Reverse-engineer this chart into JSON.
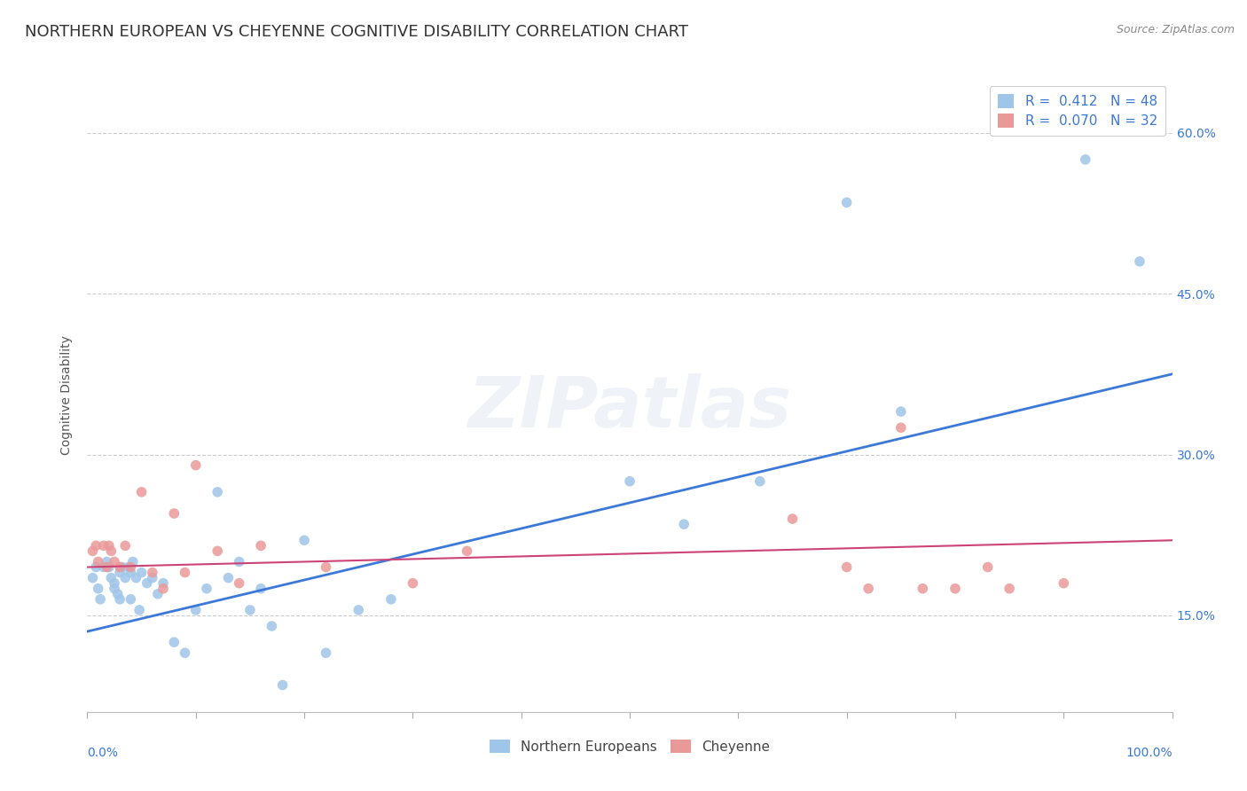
{
  "title": "NORTHERN EUROPEAN VS CHEYENNE COGNITIVE DISABILITY CORRELATION CHART",
  "source": "Source: ZipAtlas.com",
  "ylabel": "Cognitive Disability",
  "ytick_labels": [
    "15.0%",
    "30.0%",
    "45.0%",
    "60.0%"
  ],
  "ytick_values": [
    0.15,
    0.3,
    0.45,
    0.6
  ],
  "xlim": [
    0.0,
    1.0
  ],
  "ylim": [
    0.06,
    0.65
  ],
  "watermark": "ZIPatlas",
  "legend1_r": "R =  0.412",
  "legend1_n": "N = 48",
  "legend2_r": "R =  0.070",
  "legend2_n": "N = 32",
  "bottom_legend1": "Northern Europeans",
  "bottom_legend2": "Cheyenne",
  "blue_color": "#9fc5e8",
  "pink_color": "#ea9999",
  "blue_line_color": "#3c78d8",
  "pink_line_color": "#cc4477",
  "text_color": "#3c78d8",
  "background_color": "#ffffff",
  "grid_color": "#cccccc",
  "blue_scatter_x": [
    0.005,
    0.008,
    0.01,
    0.012,
    0.015,
    0.018,
    0.02,
    0.022,
    0.025,
    0.025,
    0.028,
    0.03,
    0.03,
    0.032,
    0.035,
    0.038,
    0.04,
    0.04,
    0.042,
    0.045,
    0.048,
    0.05,
    0.055,
    0.06,
    0.065,
    0.07,
    0.08,
    0.09,
    0.1,
    0.11,
    0.12,
    0.13,
    0.14,
    0.15,
    0.16,
    0.17,
    0.18,
    0.2,
    0.22,
    0.25,
    0.28,
    0.5,
    0.55,
    0.62,
    0.7,
    0.75,
    0.92,
    0.97
  ],
  "blue_scatter_y": [
    0.185,
    0.195,
    0.175,
    0.165,
    0.195,
    0.2,
    0.195,
    0.185,
    0.18,
    0.175,
    0.17,
    0.165,
    0.19,
    0.195,
    0.185,
    0.195,
    0.19,
    0.165,
    0.2,
    0.185,
    0.155,
    0.19,
    0.18,
    0.185,
    0.17,
    0.18,
    0.125,
    0.115,
    0.155,
    0.175,
    0.265,
    0.185,
    0.2,
    0.155,
    0.175,
    0.14,
    0.085,
    0.22,
    0.115,
    0.155,
    0.165,
    0.275,
    0.235,
    0.275,
    0.535,
    0.34,
    0.575,
    0.48
  ],
  "pink_scatter_x": [
    0.005,
    0.008,
    0.01,
    0.015,
    0.018,
    0.02,
    0.022,
    0.025,
    0.03,
    0.035,
    0.04,
    0.05,
    0.06,
    0.07,
    0.08,
    0.09,
    0.1,
    0.12,
    0.14,
    0.16,
    0.22,
    0.3,
    0.35,
    0.65,
    0.7,
    0.72,
    0.75,
    0.77,
    0.8,
    0.83,
    0.85,
    0.9
  ],
  "pink_scatter_y": [
    0.21,
    0.215,
    0.2,
    0.215,
    0.195,
    0.215,
    0.21,
    0.2,
    0.195,
    0.215,
    0.195,
    0.265,
    0.19,
    0.175,
    0.245,
    0.19,
    0.29,
    0.21,
    0.18,
    0.215,
    0.195,
    0.18,
    0.21,
    0.24,
    0.195,
    0.175,
    0.325,
    0.175,
    0.175,
    0.195,
    0.175,
    0.18
  ],
  "blue_line_x0": 0.0,
  "blue_line_x1": 1.0,
  "blue_line_y0": 0.135,
  "blue_line_y1": 0.375,
  "pink_line_x0": 0.0,
  "pink_line_x1": 1.0,
  "pink_line_y0": 0.195,
  "pink_line_y1": 0.22,
  "title_fontsize": 13,
  "axis_label_fontsize": 10,
  "tick_fontsize": 10,
  "legend_fontsize": 11,
  "source_fontsize": 9,
  "marker_size": 70
}
